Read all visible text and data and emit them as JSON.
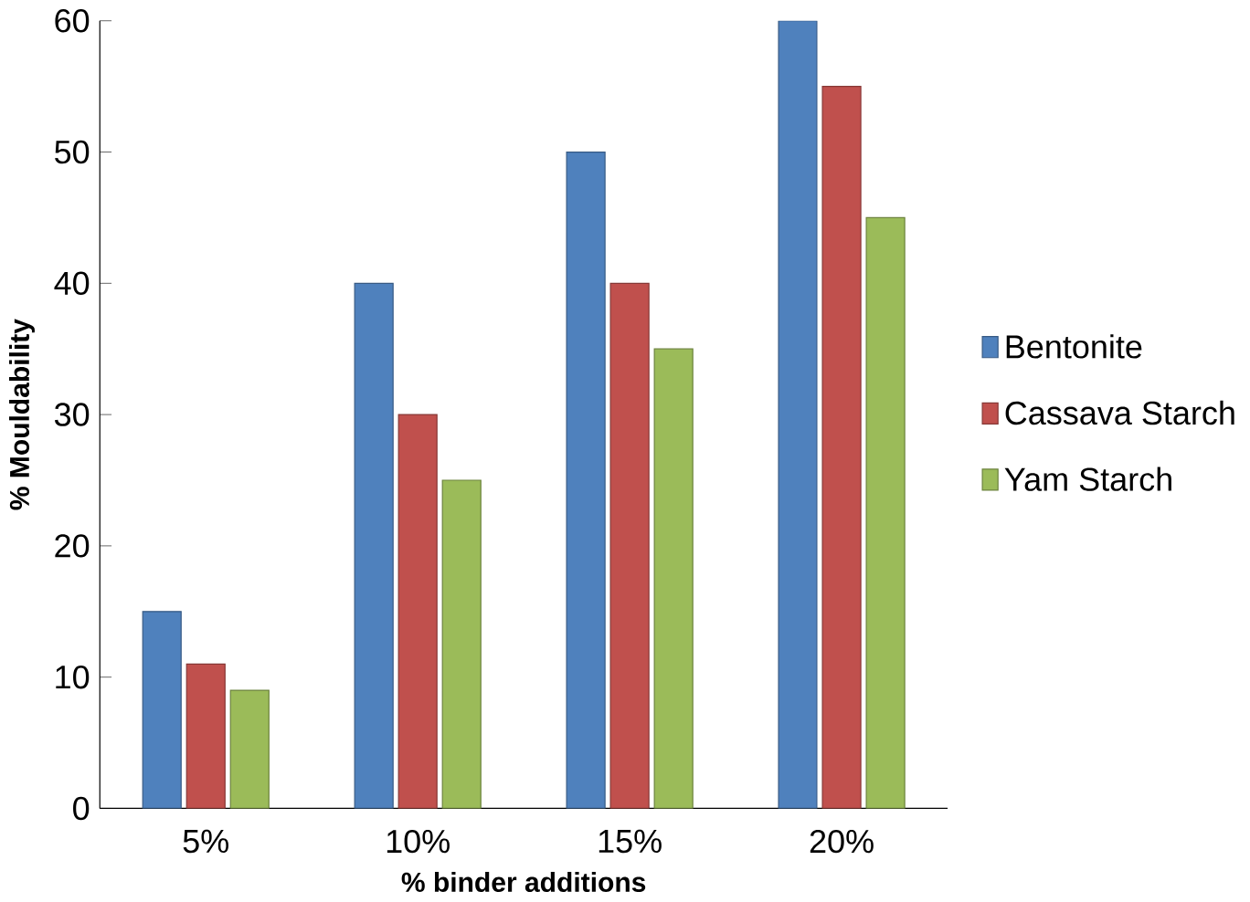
{
  "chart_data": {
    "type": "bar",
    "xlabel": "% binder additions",
    "ylabel": "% Mouldability",
    "categories": [
      "5%",
      "10%",
      "15%",
      "20%"
    ],
    "series": [
      {
        "name": "Bentonite",
        "color": "#4f81bd",
        "values": [
          15,
          40,
          50,
          60
        ]
      },
      {
        "name": "Cassava Starch",
        "color": "#c0504d",
        "values": [
          11,
          30,
          40,
          55
        ]
      },
      {
        "name": "Yam Starch",
        "color": "#9bbb59",
        "values": [
          9,
          25,
          35,
          45
        ]
      }
    ],
    "ylim": [
      0,
      60
    ],
    "yticks": [
      0,
      10,
      20,
      30,
      40,
      50,
      60
    ],
    "grid": false,
    "legend": "right"
  }
}
